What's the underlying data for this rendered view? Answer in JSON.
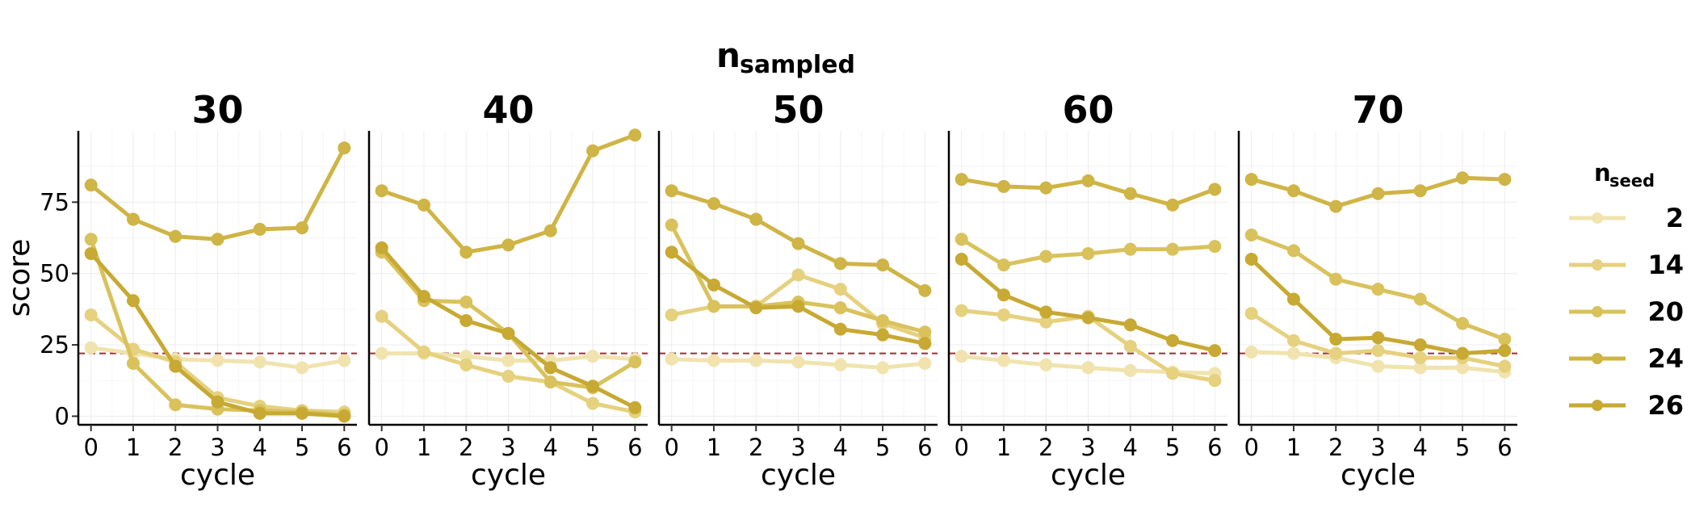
{
  "chart_data": {
    "type": "line",
    "facet_title": "n",
    "facet_title_sub": "sampled",
    "legend_title": "n",
    "legend_title_sub": "seed",
    "xlabel": "cycle",
    "ylabel": "score",
    "x": [
      0,
      1,
      2,
      3,
      4,
      5,
      6
    ],
    "x_ticks": [
      "0",
      "1",
      "2",
      "3",
      "4",
      "5",
      "6"
    ],
    "y_ticks": [
      0,
      25,
      50,
      75
    ],
    "ylim": [
      -3,
      100
    ],
    "xlim": [
      -0.3,
      6.3
    ],
    "reference_line": 22,
    "reference_color": "#9b2f3a",
    "grid": true,
    "legend_position": "right",
    "series_meta": [
      {
        "name": "2",
        "color": "#f0e3ae"
      },
      {
        "name": "14",
        "color": "#e5d17e"
      },
      {
        "name": "20",
        "color": "#d9c25c"
      },
      {
        "name": "24",
        "color": "#cfb446"
      },
      {
        "name": "26",
        "color": "#c7a933"
      }
    ],
    "panels": [
      {
        "title": "30",
        "series": [
          {
            "name": "2",
            "values": [
              24,
              22,
              20,
              19.5,
              19,
              17,
              19.5
            ]
          },
          {
            "name": "14",
            "values": [
              35.5,
              23.5,
              19,
              6.5,
              3.5,
              2,
              1.5
            ]
          },
          {
            "name": "20",
            "values": [
              62,
              18.5,
              4,
              2.5,
              2,
              1.5,
              0.5
            ]
          },
          {
            "name": "24",
            "values": [
              81,
              69,
              63,
              62,
              65.5,
              66,
              94
            ]
          },
          {
            "name": "26",
            "values": [
              57,
              40.5,
              17.5,
              5,
              1,
              1,
              0
            ]
          }
        ]
      },
      {
        "title": "40",
        "series": [
          {
            "name": "2",
            "values": [
              22,
              22,
              21,
              19.5,
              19.5,
              21,
              20
            ]
          },
          {
            "name": "14",
            "values": [
              35,
              22.5,
              18,
              14,
              12,
              4.5,
              1.5
            ]
          },
          {
            "name": "20",
            "values": [
              57.5,
              40.5,
              40,
              29,
              12,
              10,
              19
            ]
          },
          {
            "name": "24",
            "values": [
              79,
              74,
              57.5,
              60,
              65,
              93,
              98.5
            ]
          },
          {
            "name": "26",
            "values": [
              59,
              42,
              33.5,
              29,
              17,
              10.5,
              3
            ]
          }
        ]
      },
      {
        "title": "50",
        "series": [
          {
            "name": "2",
            "values": [
              20,
              19.5,
              19.5,
              19,
              18,
              17,
              18.5
            ]
          },
          {
            "name": "14",
            "values": [
              35.5,
              38.5,
              38.5,
              49.5,
              44.5,
              32.5,
              27.5
            ]
          },
          {
            "name": "20",
            "values": [
              67,
              38.5,
              38.5,
              40,
              38,
              33.5,
              29.5
            ]
          },
          {
            "name": "24",
            "values": [
              79,
              74.5,
              69,
              60.5,
              53.5,
              53,
              44
            ]
          },
          {
            "name": "26",
            "values": [
              57.5,
              46,
              38,
              38.5,
              30.5,
              28.5,
              25.5
            ]
          }
        ]
      },
      {
        "title": "60",
        "series": [
          {
            "name": "2",
            "values": [
              21,
              19.5,
              18,
              17,
              16,
              15.5,
              15
            ]
          },
          {
            "name": "14",
            "values": [
              37,
              35.5,
              33,
              35,
              24.5,
              15,
              12.5
            ]
          },
          {
            "name": "20",
            "values": [
              62,
              53,
              56,
              57,
              58.5,
              58.5,
              59.5
            ]
          },
          {
            "name": "24",
            "values": [
              83,
              80.5,
              80,
              82.5,
              78,
              74,
              79.5
            ]
          },
          {
            "name": "26",
            "values": [
              55,
              42.5,
              36.5,
              34.5,
              32,
              26.5,
              23
            ]
          }
        ]
      },
      {
        "title": "70",
        "series": [
          {
            "name": "2",
            "values": [
              22.5,
              22,
              20.5,
              17.5,
              17,
              17,
              15.5
            ]
          },
          {
            "name": "14",
            "values": [
              36,
              26.5,
              22,
              23,
              20.5,
              20.5,
              17.5
            ]
          },
          {
            "name": "20",
            "values": [
              63.5,
              58,
              48,
              44.5,
              41,
              32.5,
              27
            ]
          },
          {
            "name": "24",
            "values": [
              83,
              79,
              73.5,
              78,
              79,
              83.5,
              83
            ]
          },
          {
            "name": "26",
            "values": [
              55,
              41,
              27,
              27.5,
              25,
              22,
              23
            ]
          }
        ]
      }
    ]
  }
}
